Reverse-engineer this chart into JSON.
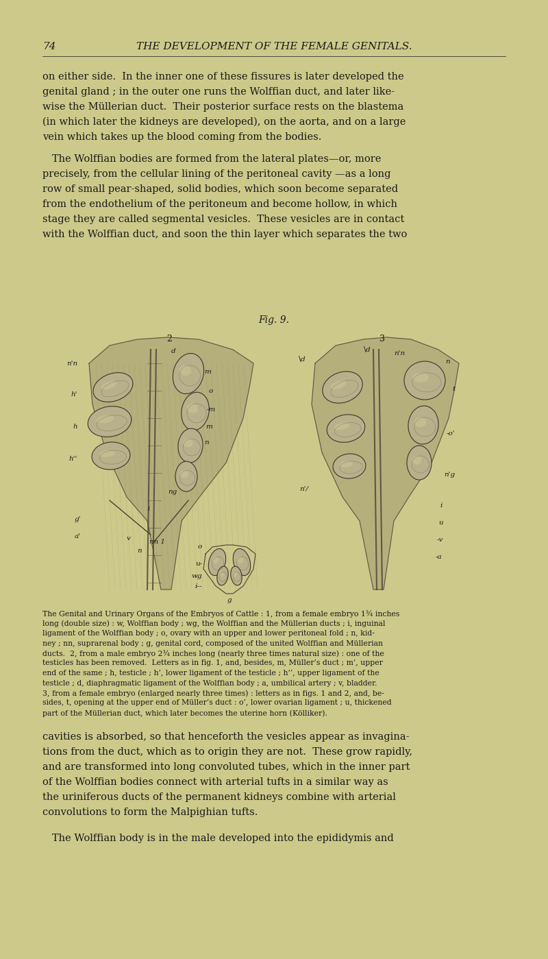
{
  "bg_color": "#cdc98a",
  "text_color": "#1a1a1a",
  "page_number": "74",
  "header": "THE DEVELOPMENT OF THE FEMALE GENITALS.",
  "paragraph1_lines": [
    "on either side.  In the inner one of these fissures is later developed the",
    "genital gland ; in the outer one runs the Wolffian duct, and later like-",
    "wise the Müllerian duct.  Their posterior surface rests on the blastema",
    "(in which later the kidneys are developed), on the aorta, and on a large",
    "vein which takes up the blood coming from the bodies."
  ],
  "paragraph2_lines": [
    "   The Wolffian bodies are formed from the lateral plates—or, more",
    "precisely, from the cellular lining of the peritoneal cavity —as a long",
    "row of small pear-shaped, solid bodies, which soon become separated",
    "from the endothelium of the peritoneum and become hollow, in which",
    "stage they are called segmental vesicles.  These vesicles are in contact",
    "with the Wolffian duct, and soon the thin layer which separates the two"
  ],
  "fig_title": "Fig. 9.",
  "fig_caption_lines": [
    "The Genital and Urinary Organs of the Embryos of Cattle : 1, from a female embryo 1¾ inches",
    "long (double size) : w, Wolffian body ; wg, the Wolffian and the Müllerian ducts ; i, inguinal",
    "ligament of the Wolffian body ; o, ovary with an upper and lower peritoneal fold ; n, kid-",
    "ney ; nn, suprarenal body ; g, genital cord, composed of the united Wolffian and Müllerian",
    "ducts.  2, from a male embryo 2¾ inches long (nearly three times natural size) : one of the",
    "testicles has been removed.  Letters as in fig. 1, and, besides, m, Müller’s duct ; m’, upper",
    "end of the same ; h, testicle ; h’, lower ligament of the testicle ; h’’, upper ligament of the",
    "testicle ; d, diaphragmatic ligament of the Wolffian body ; a, umbilical artery ; v, bladder.",
    "3, from a female embryo (enlarged nearly three times) : letters as in figs. 1 and 2, and, be-",
    "sides, t, opening at the upper end of Müller’s duct : o’, lower ovarian ligament ; u, thickened",
    "part of the Müllerian duct, which later becomes the uterine horn (Kölliker)."
  ],
  "paragraph3_lines": [
    "cavities is absorbed, so that henceforth the vesicles appear as invagina-",
    "tions from the duct, which as to origin they are not.  These grow rapidly,",
    "and are transformed into long convoluted tubes, which in the inner part",
    "of the Wolffian bodies connect with arterial tufts in a similar way as",
    "the uriniferous ducts of the permanent kidneys combine with arterial",
    "convolutions to form the Malpighian tufts."
  ],
  "paragraph4_lines": [
    "   The Wolffian body is in the male developed into the epididymis and"
  ]
}
